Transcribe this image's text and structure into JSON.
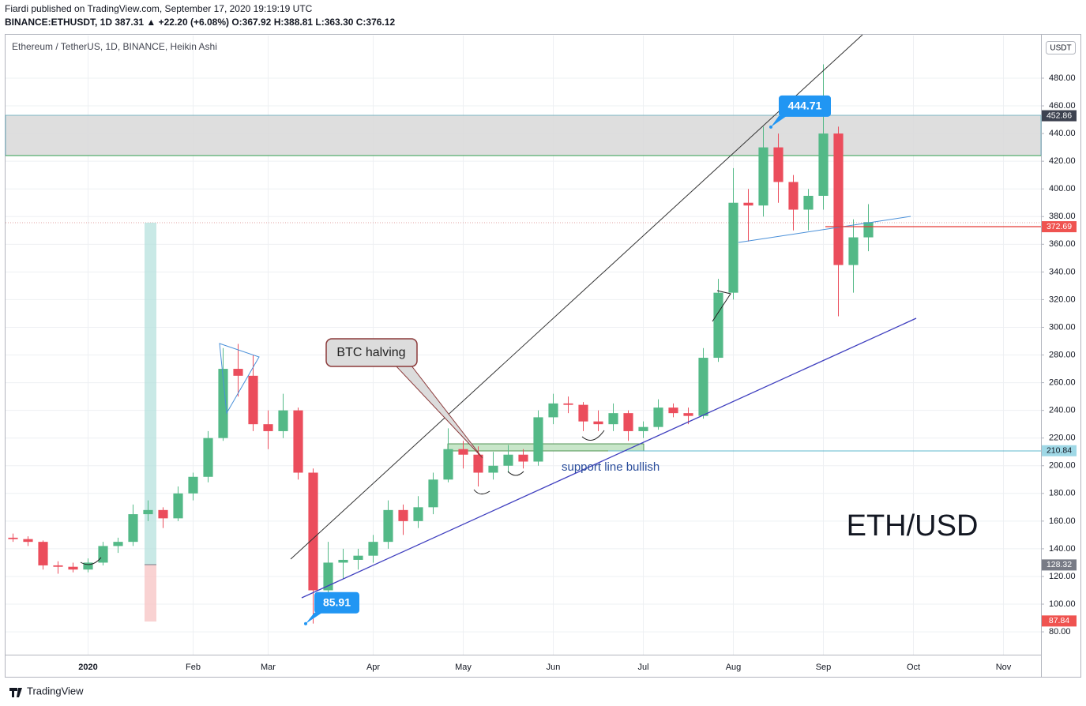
{
  "header": {
    "published": "Fiardi published on TradingView.com, September 17, 2020 19:19:19 UTC",
    "quote": "BINANCE:ETHUSDT, 1D 387.31 ▲ +22.20 (+6.08%) O:367.92 H:388.81 L:363.30 C:376.12"
  },
  "footer": {
    "brand": "TradingView"
  },
  "chart_data": {
    "type": "candlestick",
    "title": "Ethereum / TetherUS, 1D, BINANCE, Heikin Ashi",
    "currency": "USDT",
    "categories": [
      null,
      null,
      null,
      null,
      null,
      "2020",
      null,
      null,
      null,
      null,
      null,
      null,
      "Feb",
      null,
      null,
      null,
      null,
      "Mar",
      null,
      null,
      null,
      null,
      null,
      null,
      "Apr",
      null,
      null,
      null,
      null,
      null,
      "May",
      null,
      null,
      null,
      null,
      null,
      "Jun",
      null,
      null,
      null,
      null,
      null,
      "Jul",
      null,
      null,
      null,
      null,
      null,
      "Aug",
      null,
      null,
      null,
      null,
      null,
      "Sep",
      null,
      null,
      null,
      null,
      null,
      "Oct",
      null,
      null,
      null,
      null,
      null,
      "Nov",
      null,
      null
    ],
    "open": [
      148,
      147,
      145,
      128,
      127,
      125,
      130,
      142,
      145,
      165,
      168,
      162,
      180,
      192,
      220,
      270,
      265,
      230,
      225,
      240,
      195,
      110,
      130,
      132,
      135,
      145,
      168,
      160,
      170,
      190,
      212,
      208,
      195,
      200,
      208,
      203,
      235,
      245,
      244,
      232,
      230,
      238,
      225,
      228,
      242,
      238,
      236,
      278,
      325,
      390,
      388,
      430,
      405,
      385,
      395,
      440,
      345,
      365,
      null,
      null,
      null,
      null,
      null,
      null,
      null,
      null,
      null,
      null,
      null
    ],
    "high": [
      151,
      149,
      146,
      131,
      130,
      133,
      145,
      148,
      172,
      175,
      170,
      185,
      195,
      225,
      285,
      288,
      280,
      240,
      252,
      242,
      198,
      145,
      140,
      140,
      150,
      175,
      172,
      178,
      195,
      227,
      218,
      214,
      210,
      215,
      212,
      240,
      252,
      250,
      246,
      240,
      245,
      240,
      232,
      248,
      245,
      242,
      285,
      335,
      415,
      400,
      445,
      440,
      410,
      400,
      490,
      445,
      378,
      389,
      null,
      null,
      null,
      null,
      null,
      null,
      null,
      null,
      null,
      null,
      null
    ],
    "low": [
      145,
      142,
      125,
      122,
      123,
      123,
      128,
      137,
      142,
      160,
      155,
      160,
      175,
      188,
      218,
      250,
      225,
      212,
      220,
      190,
      86,
      100,
      118,
      125,
      130,
      140,
      150,
      155,
      165,
      188,
      198,
      185,
      190,
      195,
      198,
      200,
      230,
      238,
      225,
      225,
      225,
      218,
      220,
      226,
      235,
      230,
      234,
      275,
      320,
      362,
      380,
      390,
      370,
      370,
      385,
      308,
      325,
      355,
      null,
      null,
      null,
      null,
      null,
      null,
      null,
      null,
      null,
      null,
      null
    ],
    "close": [
      147,
      145,
      128,
      127,
      125,
      130,
      142,
      145,
      165,
      168,
      162,
      180,
      192,
      220,
      270,
      265,
      230,
      225,
      240,
      195,
      110,
      130,
      132,
      135,
      145,
      168,
      160,
      170,
      190,
      212,
      208,
      195,
      200,
      208,
      203,
      235,
      245,
      244,
      232,
      230,
      238,
      225,
      228,
      242,
      238,
      236,
      278,
      325,
      390,
      388,
      430,
      405,
      385,
      395,
      440,
      345,
      365,
      376,
      null,
      null,
      null,
      null,
      null,
      null,
      null,
      null,
      null,
      null,
      null
    ],
    "up_color": "#53b987",
    "down_color": "#eb4d5c",
    "ylim": [
      63.5,
      510.8
    ],
    "yticks": [
      {
        "value": 80,
        "label": "80.00"
      },
      {
        "value": 100,
        "label": "100.00"
      },
      {
        "value": 120,
        "label": "120.00"
      },
      {
        "value": 140,
        "label": "140.00"
      },
      {
        "value": 160,
        "label": "160.00"
      },
      {
        "value": 180,
        "label": "180.00"
      },
      {
        "value": 200,
        "label": "200.00"
      },
      {
        "value": 220,
        "label": "220.00"
      },
      {
        "value": 240,
        "label": "240.00"
      },
      {
        "value": 260,
        "label": "260.00"
      },
      {
        "value": 280,
        "label": "280.00"
      },
      {
        "value": 300,
        "label": "300.00"
      },
      {
        "value": 320,
        "label": "320.00"
      },
      {
        "value": 340,
        "label": "340.00"
      },
      {
        "value": 360,
        "label": "360.00"
      },
      {
        "value": 380,
        "label": "380.00"
      },
      {
        "value": 400,
        "label": "400.00"
      },
      {
        "value": 420,
        "label": "420.00"
      },
      {
        "value": 440,
        "label": "440.00"
      },
      {
        "value": 460,
        "label": "460.00"
      },
      {
        "value": 480,
        "label": "480.00"
      }
    ],
    "grid": true,
    "price_tags": [
      {
        "value": 452.86,
        "color": "#3d4250"
      },
      {
        "value": 372.69,
        "color": "#ef5350"
      },
      {
        "value": 210.84,
        "color": "#9fd8e6"
      },
      {
        "value": 128.32,
        "color": "#787b86"
      },
      {
        "value": 87.84,
        "color": "#ef5350"
      }
    ],
    "callouts": [
      {
        "value": 444.71,
        "color": "#2196f3"
      },
      {
        "value": 85.91,
        "color": "#2196f3"
      }
    ],
    "annotations": {
      "halving": "BTC halving",
      "support": "support line bullish",
      "pair": "ETH/USD"
    }
  }
}
